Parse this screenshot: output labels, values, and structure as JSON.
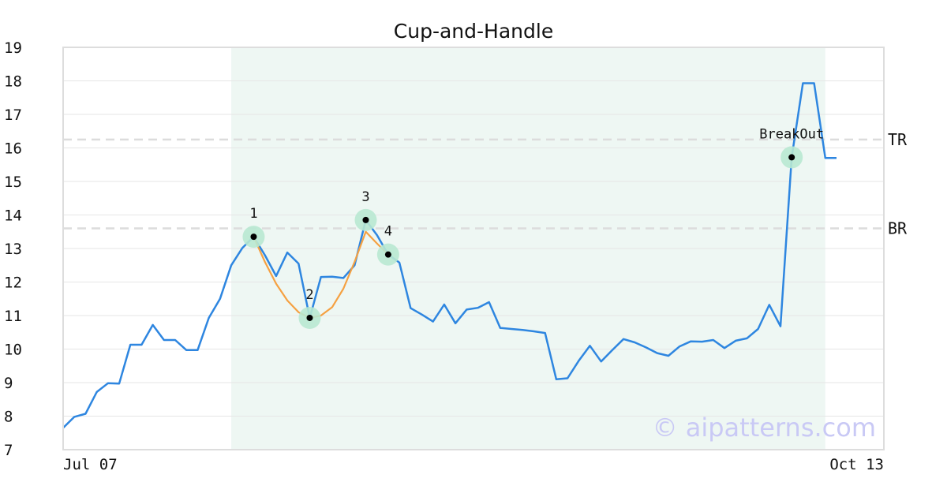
{
  "chart_data": {
    "type": "line",
    "title": "Cup-and-Handle",
    "watermark": "© aipatterns.com",
    "x_tick_labels": [
      "Jul 07",
      "Oct 13"
    ],
    "y_ticks": [
      7,
      8,
      9,
      10,
      11,
      12,
      13,
      14,
      15,
      16,
      17,
      18,
      19
    ],
    "ylim": [
      7,
      19
    ],
    "grid": true,
    "series": [
      {
        "color": "#2e86e0",
        "values": [
          7.65,
          7.98,
          8.07,
          8.72,
          8.98,
          8.97,
          10.13,
          10.13,
          10.72,
          10.27,
          10.27,
          9.97,
          9.97,
          10.93,
          11.5,
          12.5,
          13.02,
          13.35,
          12.8,
          12.18,
          12.88,
          12.55,
          10.93,
          12.15,
          12.16,
          12.12,
          12.5,
          13.85,
          13.4,
          12.82,
          12.58,
          11.22,
          11.03,
          10.82,
          11.33,
          10.77,
          11.18,
          11.23,
          11.4,
          10.63,
          10.6,
          10.57,
          10.53,
          10.48,
          9.1,
          9.13,
          9.65,
          10.1,
          9.63,
          9.97,
          10.3,
          10.2,
          10.05,
          9.88,
          9.8,
          10.08,
          10.23,
          10.22,
          10.27,
          10.03,
          10.25,
          10.32,
          10.6,
          11.32,
          10.68,
          15.72,
          17.93,
          17.93,
          15.7,
          15.7
        ]
      },
      {
        "color": "#f5a142",
        "start_index": 17,
        "values": [
          13.35,
          12.6,
          11.95,
          11.45,
          11.1,
          10.93,
          11.0,
          11.25,
          11.8,
          12.6,
          13.5,
          13.15,
          12.82
        ]
      }
    ],
    "levels": [
      {
        "label": "TR",
        "value": 16.25
      },
      {
        "label": "BR",
        "value": 13.6
      }
    ],
    "pattern_range": {
      "start_index": 15,
      "end_index": 68,
      "color": "#eef7f3"
    },
    "points": [
      {
        "label": "1",
        "index": 17,
        "value": 13.35
      },
      {
        "label": "2",
        "index": 22,
        "value": 10.93
      },
      {
        "label": "3",
        "index": 27,
        "value": 13.85
      },
      {
        "label": "4",
        "index": 29,
        "value": 12.82
      },
      {
        "label": "BreakOut",
        "index": 65,
        "value": 15.72
      }
    ]
  }
}
